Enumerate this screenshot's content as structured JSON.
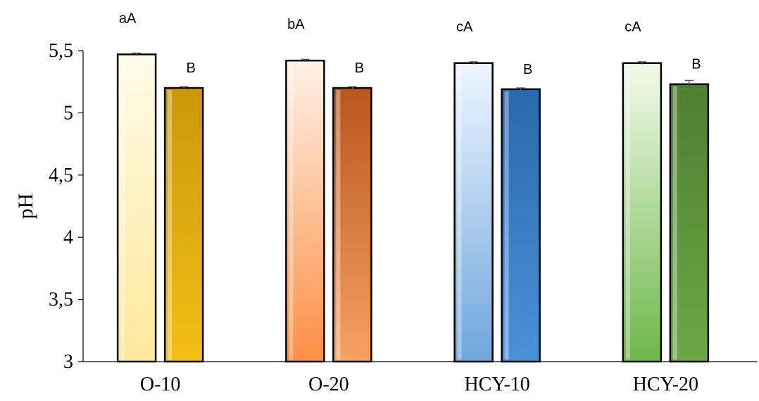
{
  "chart_data": {
    "type": "bar",
    "ylabel": "pH",
    "ylim": [
      3,
      5.5
    ],
    "yticks": [
      "3",
      "3,5",
      "4",
      "4,5",
      "5",
      "5,5"
    ],
    "tick_values": [
      3,
      3.5,
      4,
      4.5,
      5,
      5.5
    ],
    "categories": [
      "O-10",
      "O-20",
      "HCY-10",
      "HCY-20"
    ],
    "grid": false,
    "bars": [
      [
        {
          "value": 5.47,
          "error": 0.01,
          "label": "aA",
          "colors": [
            "#fffbe8",
            "#fde89a"
          ]
        },
        {
          "value": 5.2,
          "error": 0.01,
          "label": "B",
          "colors": [
            "#c9990a",
            "#f3bf15"
          ]
        }
      ],
      [
        {
          "value": 5.42,
          "error": 0.01,
          "label": "bA",
          "colors": [
            "#fff2e6",
            "#ff8e44"
          ]
        },
        {
          "value": 5.2,
          "error": 0.01,
          "label": "B",
          "colors": [
            "#b8561f",
            "#f7a262"
          ]
        }
      ],
      [
        {
          "value": 5.4,
          "error": 0.01,
          "label": "cA",
          "colors": [
            "#eef6ff",
            "#6fa6dc"
          ]
        },
        {
          "value": 5.19,
          "error": 0.01,
          "label": "B",
          "colors": [
            "#2a69ab",
            "#4a91d8"
          ]
        }
      ],
      [
        {
          "value": 5.4,
          "error": 0.01,
          "label": "cA",
          "colors": [
            "#f2faea",
            "#6db84a"
          ]
        },
        {
          "value": 5.23,
          "error": 0.03,
          "label": "B",
          "colors": [
            "#4e7f31",
            "#6aa845"
          ]
        }
      ]
    ]
  }
}
